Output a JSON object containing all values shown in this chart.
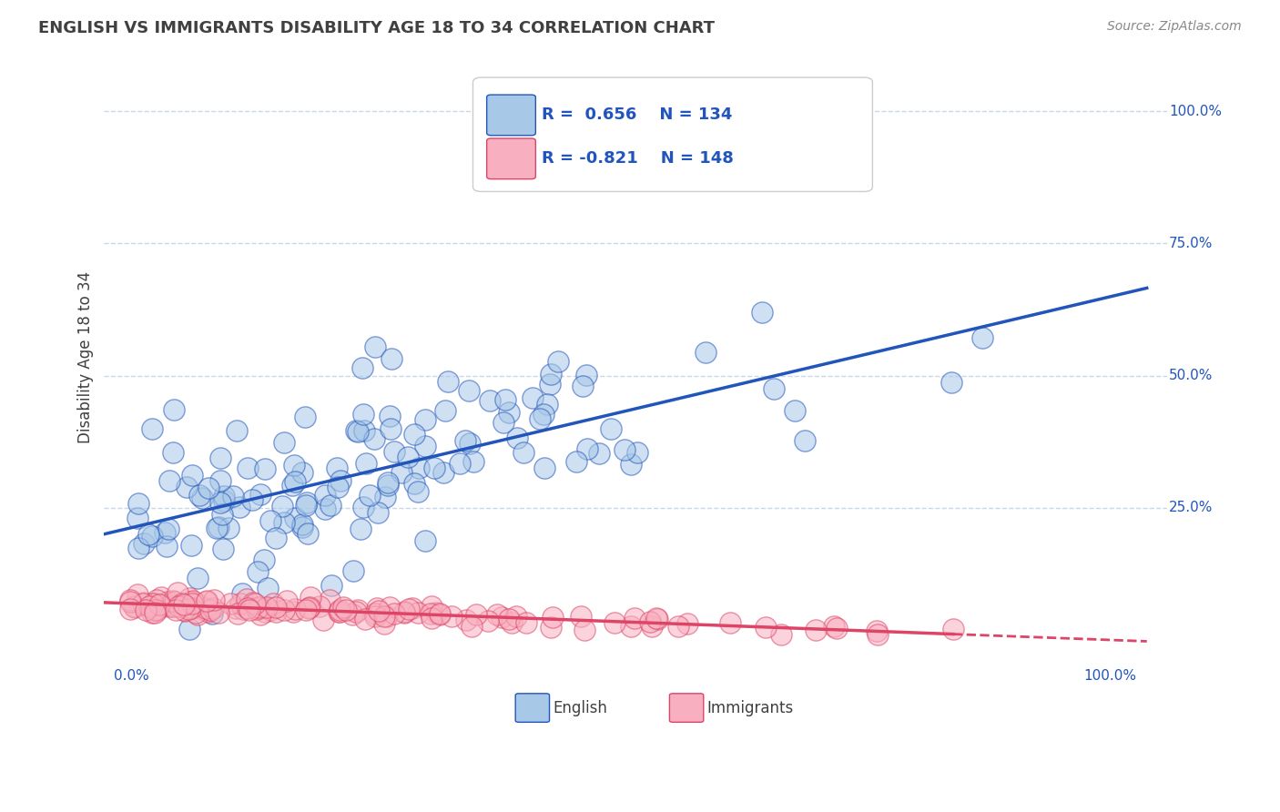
{
  "title": "ENGLISH VS IMMIGRANTS DISABILITY AGE 18 TO 34 CORRELATION CHART",
  "source_text": "Source: ZipAtlas.com",
  "ylabel": "Disability Age 18 to 34",
  "english_R": 0.656,
  "english_N": 134,
  "immigrants_R": -0.821,
  "immigrants_N": 148,
  "english_color": "#a8c8e8",
  "immigrants_color": "#f8b0c0",
  "english_line_color": "#2255bb",
  "immigrants_line_color": "#dd4466",
  "background_color": "#ffffff",
  "grid_color": "#c8d8e8",
  "title_color": "#404040",
  "annotation_color": "#2255bb",
  "seed": 42
}
